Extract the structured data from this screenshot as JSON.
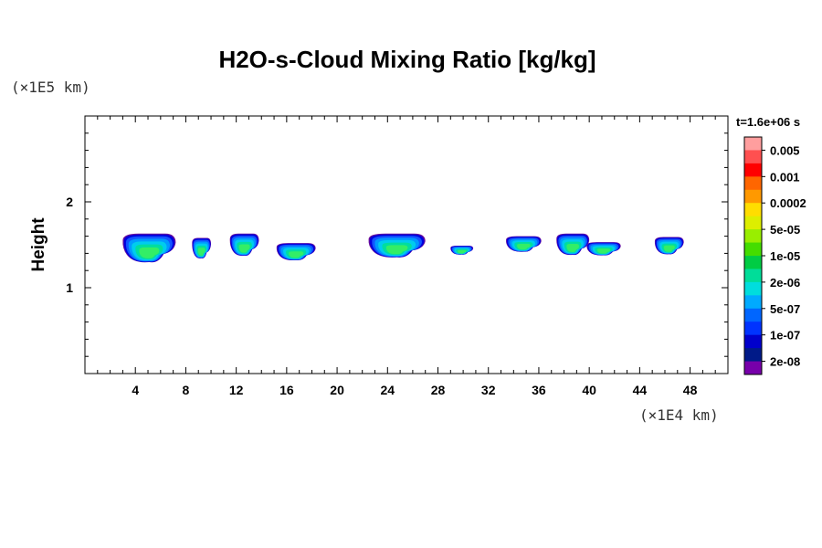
{
  "chart_data": {
    "type": "heatmap",
    "title": "H2O-s-Cloud Mixing Ratio [kg/kg]",
    "ylabel": "Height",
    "y_scale_note": "(×1E5 km)",
    "x_scale_note": "(×1E4 km)",
    "time_label": "t=1.6e+06 s",
    "x_ticks": [
      4,
      8,
      12,
      16,
      20,
      24,
      28,
      32,
      36,
      40,
      44,
      48
    ],
    "y_ticks": [
      1,
      2
    ],
    "xlim": [
      0,
      51
    ],
    "ylim": [
      0,
      3
    ],
    "colorbar": {
      "labels": [
        "0.005",
        "0.001",
        "0.0002",
        "5e-05",
        "1e-05",
        "2e-06",
        "5e-07",
        "1e-07",
        "2e-08"
      ],
      "colors": [
        "#ff9e9e",
        "#ff5050",
        "#ff0000",
        "#ff6600",
        "#ff9900",
        "#ffdd00",
        "#ddee00",
        "#99ee00",
        "#44dd00",
        "#00cc44",
        "#00dd99",
        "#00dddd",
        "#00aaff",
        "#0066ff",
        "#0033ff",
        "#0000cc",
        "#001a88",
        "#7700aa"
      ]
    },
    "cloud_patches": [
      {
        "x_range": [
          3.0,
          7.2
        ],
        "y_range": [
          1.28,
          1.63
        ]
      },
      {
        "x_range": [
          8.5,
          10.0
        ],
        "y_range": [
          1.33,
          1.58
        ]
      },
      {
        "x_range": [
          11.5,
          13.8
        ],
        "y_range": [
          1.36,
          1.63
        ]
      },
      {
        "x_range": [
          15.2,
          18.3
        ],
        "y_range": [
          1.31,
          1.52
        ]
      },
      {
        "x_range": [
          22.5,
          27.0
        ],
        "y_range": [
          1.34,
          1.63
        ]
      },
      {
        "x_range": [
          29.0,
          30.8
        ],
        "y_range": [
          1.38,
          1.49
        ]
      },
      {
        "x_range": [
          33.4,
          36.2
        ],
        "y_range": [
          1.41,
          1.6
        ]
      },
      {
        "x_range": [
          37.4,
          40.0
        ],
        "y_range": [
          1.37,
          1.63
        ]
      },
      {
        "x_range": [
          39.8,
          42.5
        ],
        "y_range": [
          1.37,
          1.53
        ]
      },
      {
        "x_range": [
          45.2,
          47.5
        ],
        "y_range": [
          1.38,
          1.59
        ]
      }
    ]
  }
}
